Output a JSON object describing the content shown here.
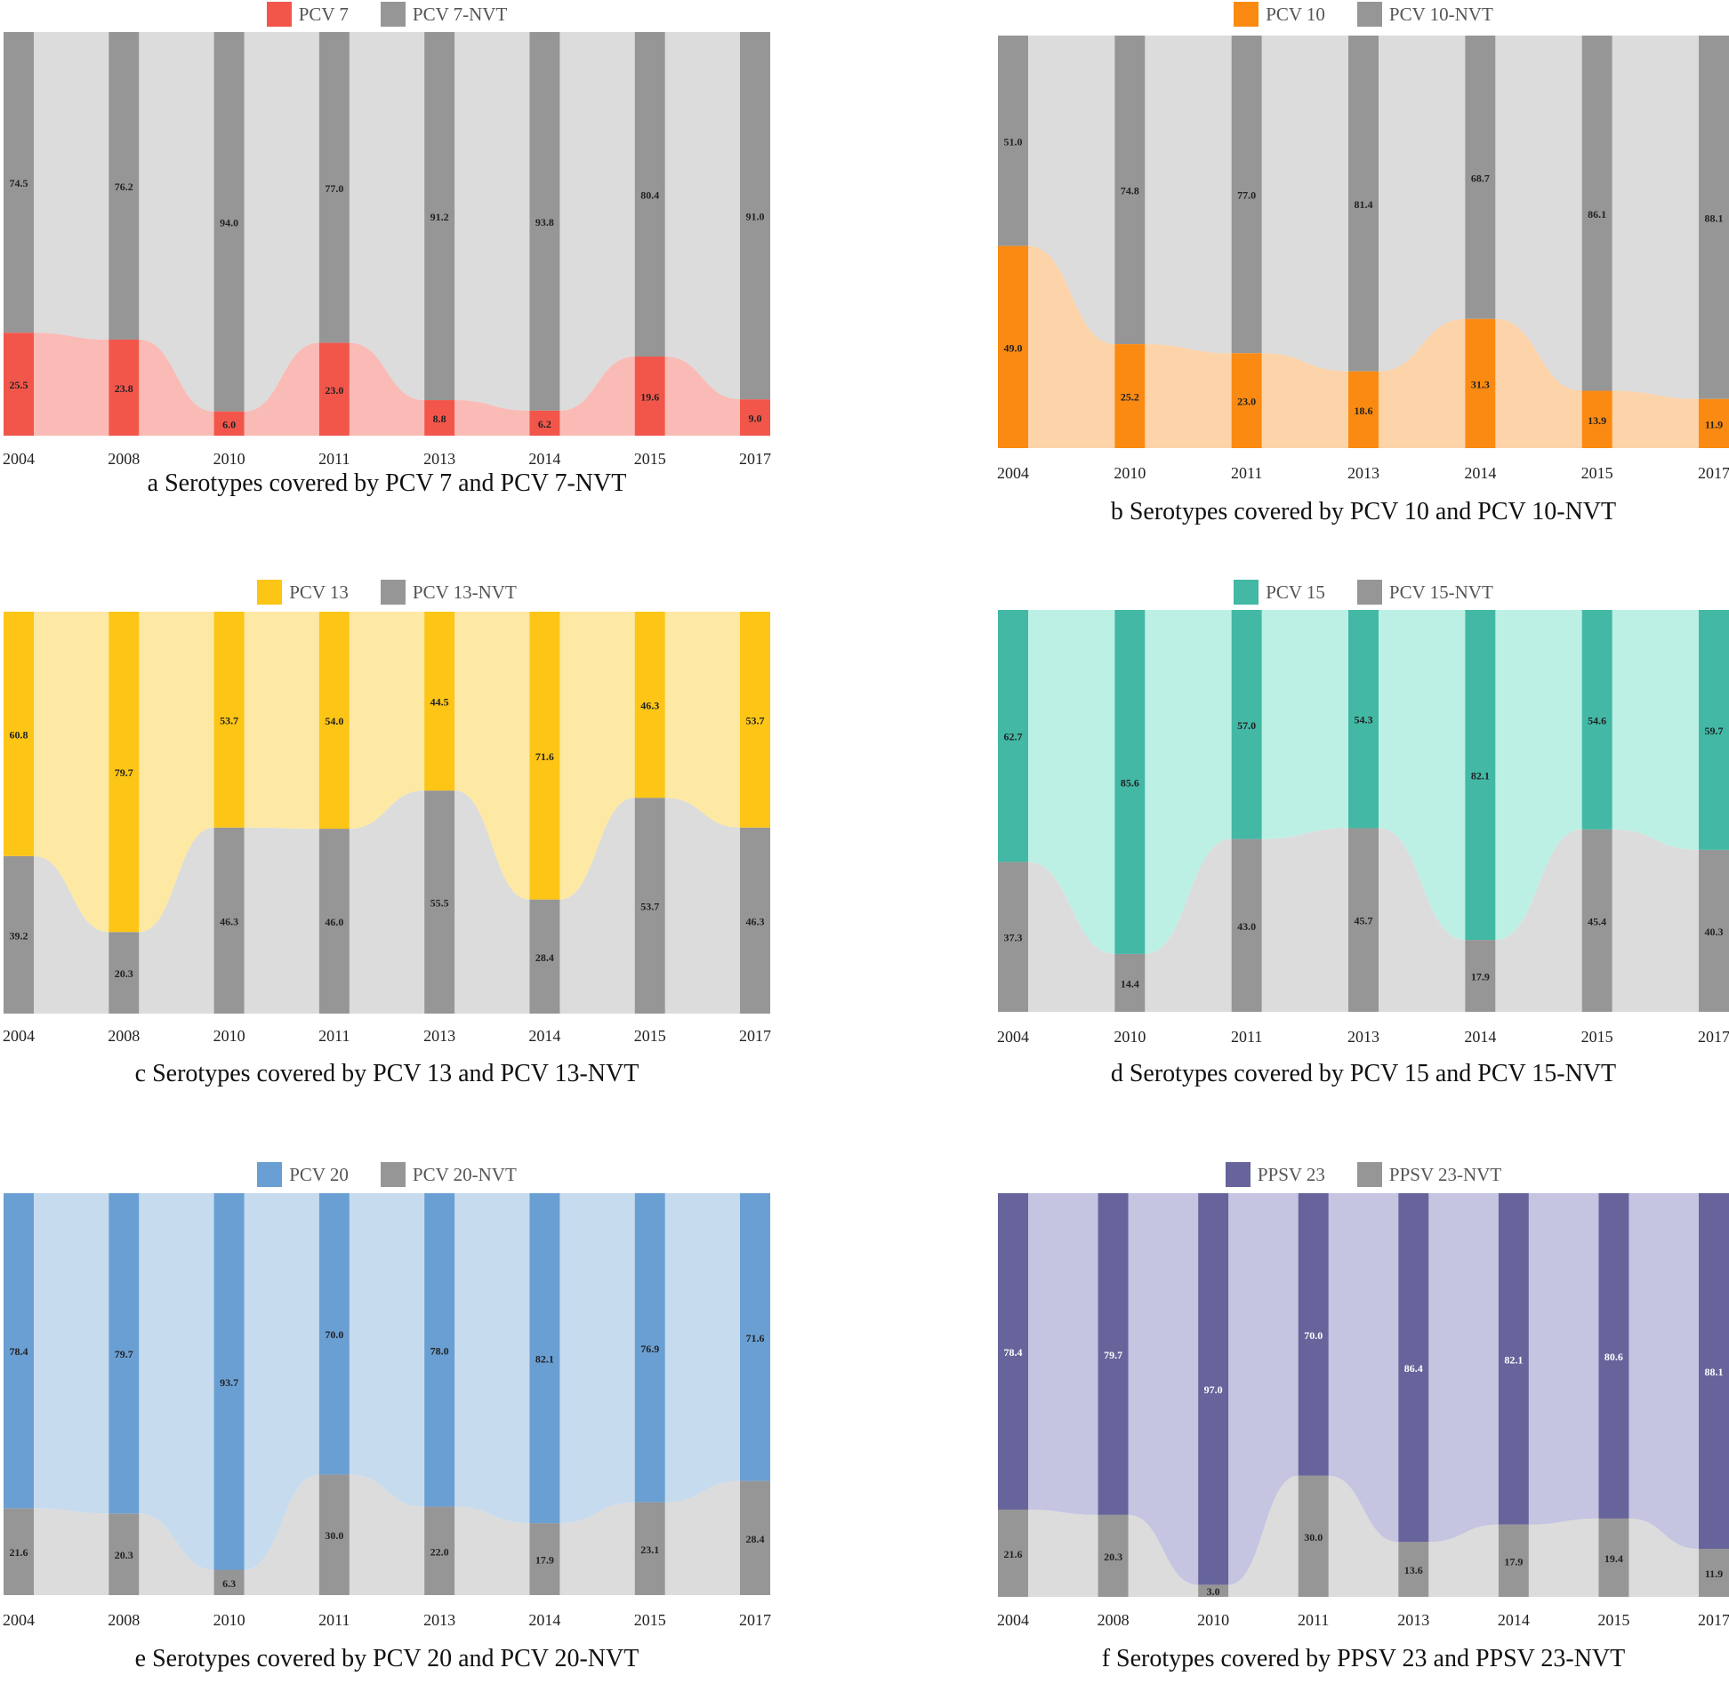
{
  "chart_data": [
    {
      "type": "alluvial",
      "panel_label": "a",
      "title": "a Serotypes covered by PCV 7 and PCV 7-NVT",
      "legend": [
        "PCV 7",
        "PCV 7-NVT"
      ],
      "categories": [
        "2004",
        "2008",
        "2010",
        "2011",
        "2013",
        "2014",
        "2015",
        "2017"
      ],
      "series": [
        {
          "name": "PCV 7",
          "values": [
            25.5,
            23.8,
            6.0,
            23.0,
            8.8,
            6.2,
            19.6,
            9.0
          ]
        },
        {
          "name": "PCV 7-NVT",
          "values": [
            74.5,
            76.2,
            94.0,
            77.0,
            91.2,
            93.8,
            80.4,
            91.0
          ]
        }
      ],
      "colors": {
        "covered": "#f2564b",
        "covered_flow": "#f9aaa4",
        "nvt": "#969696",
        "nvt_flow": "#d6d6d6"
      },
      "covered_on_top": false,
      "ylim": [
        0,
        100
      ]
    },
    {
      "type": "alluvial",
      "panel_label": "b",
      "title": "b Serotypes covered by PCV 10 and PCV 10-NVT",
      "legend": [
        "PCV 10",
        "PCV 10-NVT"
      ],
      "categories": [
        "2004",
        "2010",
        "2011",
        "2013",
        "2014",
        "2015",
        "2017"
      ],
      "series": [
        {
          "name": "PCV 10",
          "values": [
            49.0,
            25.2,
            23.0,
            18.6,
            31.3,
            13.9,
            11.9
          ]
        },
        {
          "name": "PCV 10-NVT",
          "values": [
            51.0,
            74.8,
            77.0,
            81.4,
            68.7,
            86.1,
            88.1
          ]
        }
      ],
      "colors": {
        "covered": "#fb8a12",
        "covered_flow": "#fcc894",
        "nvt": "#969696",
        "nvt_flow": "#d6d6d6"
      },
      "covered_on_top": false,
      "ylim": [
        0,
        100
      ]
    },
    {
      "type": "alluvial",
      "panel_label": "c",
      "title": "c Serotypes covered by PCV 13 and PCV 13-NVT",
      "legend": [
        "PCV 13",
        "PCV 13-NVT"
      ],
      "categories": [
        "2004",
        "2008",
        "2010",
        "2011",
        "2013",
        "2014",
        "2015",
        "2017"
      ],
      "series": [
        {
          "name": "PCV 13",
          "values": [
            60.8,
            79.7,
            53.7,
            54.0,
            44.5,
            71.6,
            46.3,
            53.7
          ]
        },
        {
          "name": "PCV 13-NVT",
          "values": [
            39.2,
            20.3,
            46.3,
            46.0,
            55.5,
            28.4,
            53.7,
            46.3
          ]
        }
      ],
      "colors": {
        "covered": "#fdc516",
        "covered_flow": "#fde38c",
        "nvt": "#969696",
        "nvt_flow": "#d6d6d6"
      },
      "covered_on_top": true,
      "ylim": [
        0,
        100
      ]
    },
    {
      "type": "alluvial",
      "panel_label": "d",
      "title": "d Serotypes covered by PCV 15 and PCV 15-NVT",
      "legend": [
        "PCV 15",
        "PCV 15-NVT"
      ],
      "categories": [
        "2004",
        "2010",
        "2011",
        "2013",
        "2014",
        "2015",
        "2017"
      ],
      "series": [
        {
          "name": "PCV 15",
          "values": [
            62.7,
            85.6,
            57.0,
            54.3,
            82.1,
            54.6,
            59.7
          ]
        },
        {
          "name": "PCV 15-NVT",
          "values": [
            37.3,
            14.4,
            43.0,
            45.7,
            17.9,
            45.4,
            40.3
          ]
        }
      ],
      "colors": {
        "covered": "#42b8a5",
        "covered_flow": "#acecdf",
        "nvt": "#969696",
        "nvt_flow": "#d6d6d6"
      },
      "covered_on_top": true,
      "ylim": [
        0,
        100
      ]
    },
    {
      "type": "alluvial",
      "panel_label": "e",
      "title": "e Serotypes covered by PCV 20 and PCV 20-NVT",
      "legend": [
        "PCV 20",
        "PCV 20-NVT"
      ],
      "categories": [
        "2004",
        "2008",
        "2010",
        "2011",
        "2013",
        "2014",
        "2015",
        "2017"
      ],
      "series": [
        {
          "name": "PCV 20",
          "values": [
            78.4,
            79.7,
            93.7,
            70.0,
            78.0,
            82.1,
            76.9,
            71.6
          ]
        },
        {
          "name": "PCV 20-NVT",
          "values": [
            21.6,
            20.3,
            6.3,
            30.0,
            22.0,
            17.9,
            23.1,
            28.4
          ]
        }
      ],
      "colors": {
        "covered": "#6a9fd3",
        "covered_flow": "#b8d2ea",
        "nvt": "#969696",
        "nvt_flow": "#d6d6d6"
      },
      "covered_on_top": true,
      "ylim": [
        0,
        100
      ]
    },
    {
      "type": "alluvial",
      "panel_label": "f",
      "title": "f Serotypes covered by PPSV 23 and PPSV 23-NVT",
      "legend": [
        "PPSV 23",
        "PPSV 23-NVT"
      ],
      "categories": [
        "2004",
        "2008",
        "2010",
        "2011",
        "2013",
        "2014",
        "2015",
        "2017"
      ],
      "series": [
        {
          "name": "PPSV 23",
          "values": [
            78.4,
            79.7,
            97.0,
            70.0,
            86.4,
            82.1,
            80.6,
            88.1
          ]
        },
        {
          "name": "PPSV 23-NVT",
          "values": [
            21.6,
            20.3,
            3.0,
            30.0,
            13.6,
            17.9,
            19.4,
            11.9
          ]
        }
      ],
      "colors": {
        "covered": "#66649b",
        "covered_flow": "#b7b5d9",
        "nvt": "#969696",
        "nvt_flow": "#d6d6d6"
      },
      "covered_on_top": true,
      "ylim": [
        0,
        100
      ]
    }
  ]
}
